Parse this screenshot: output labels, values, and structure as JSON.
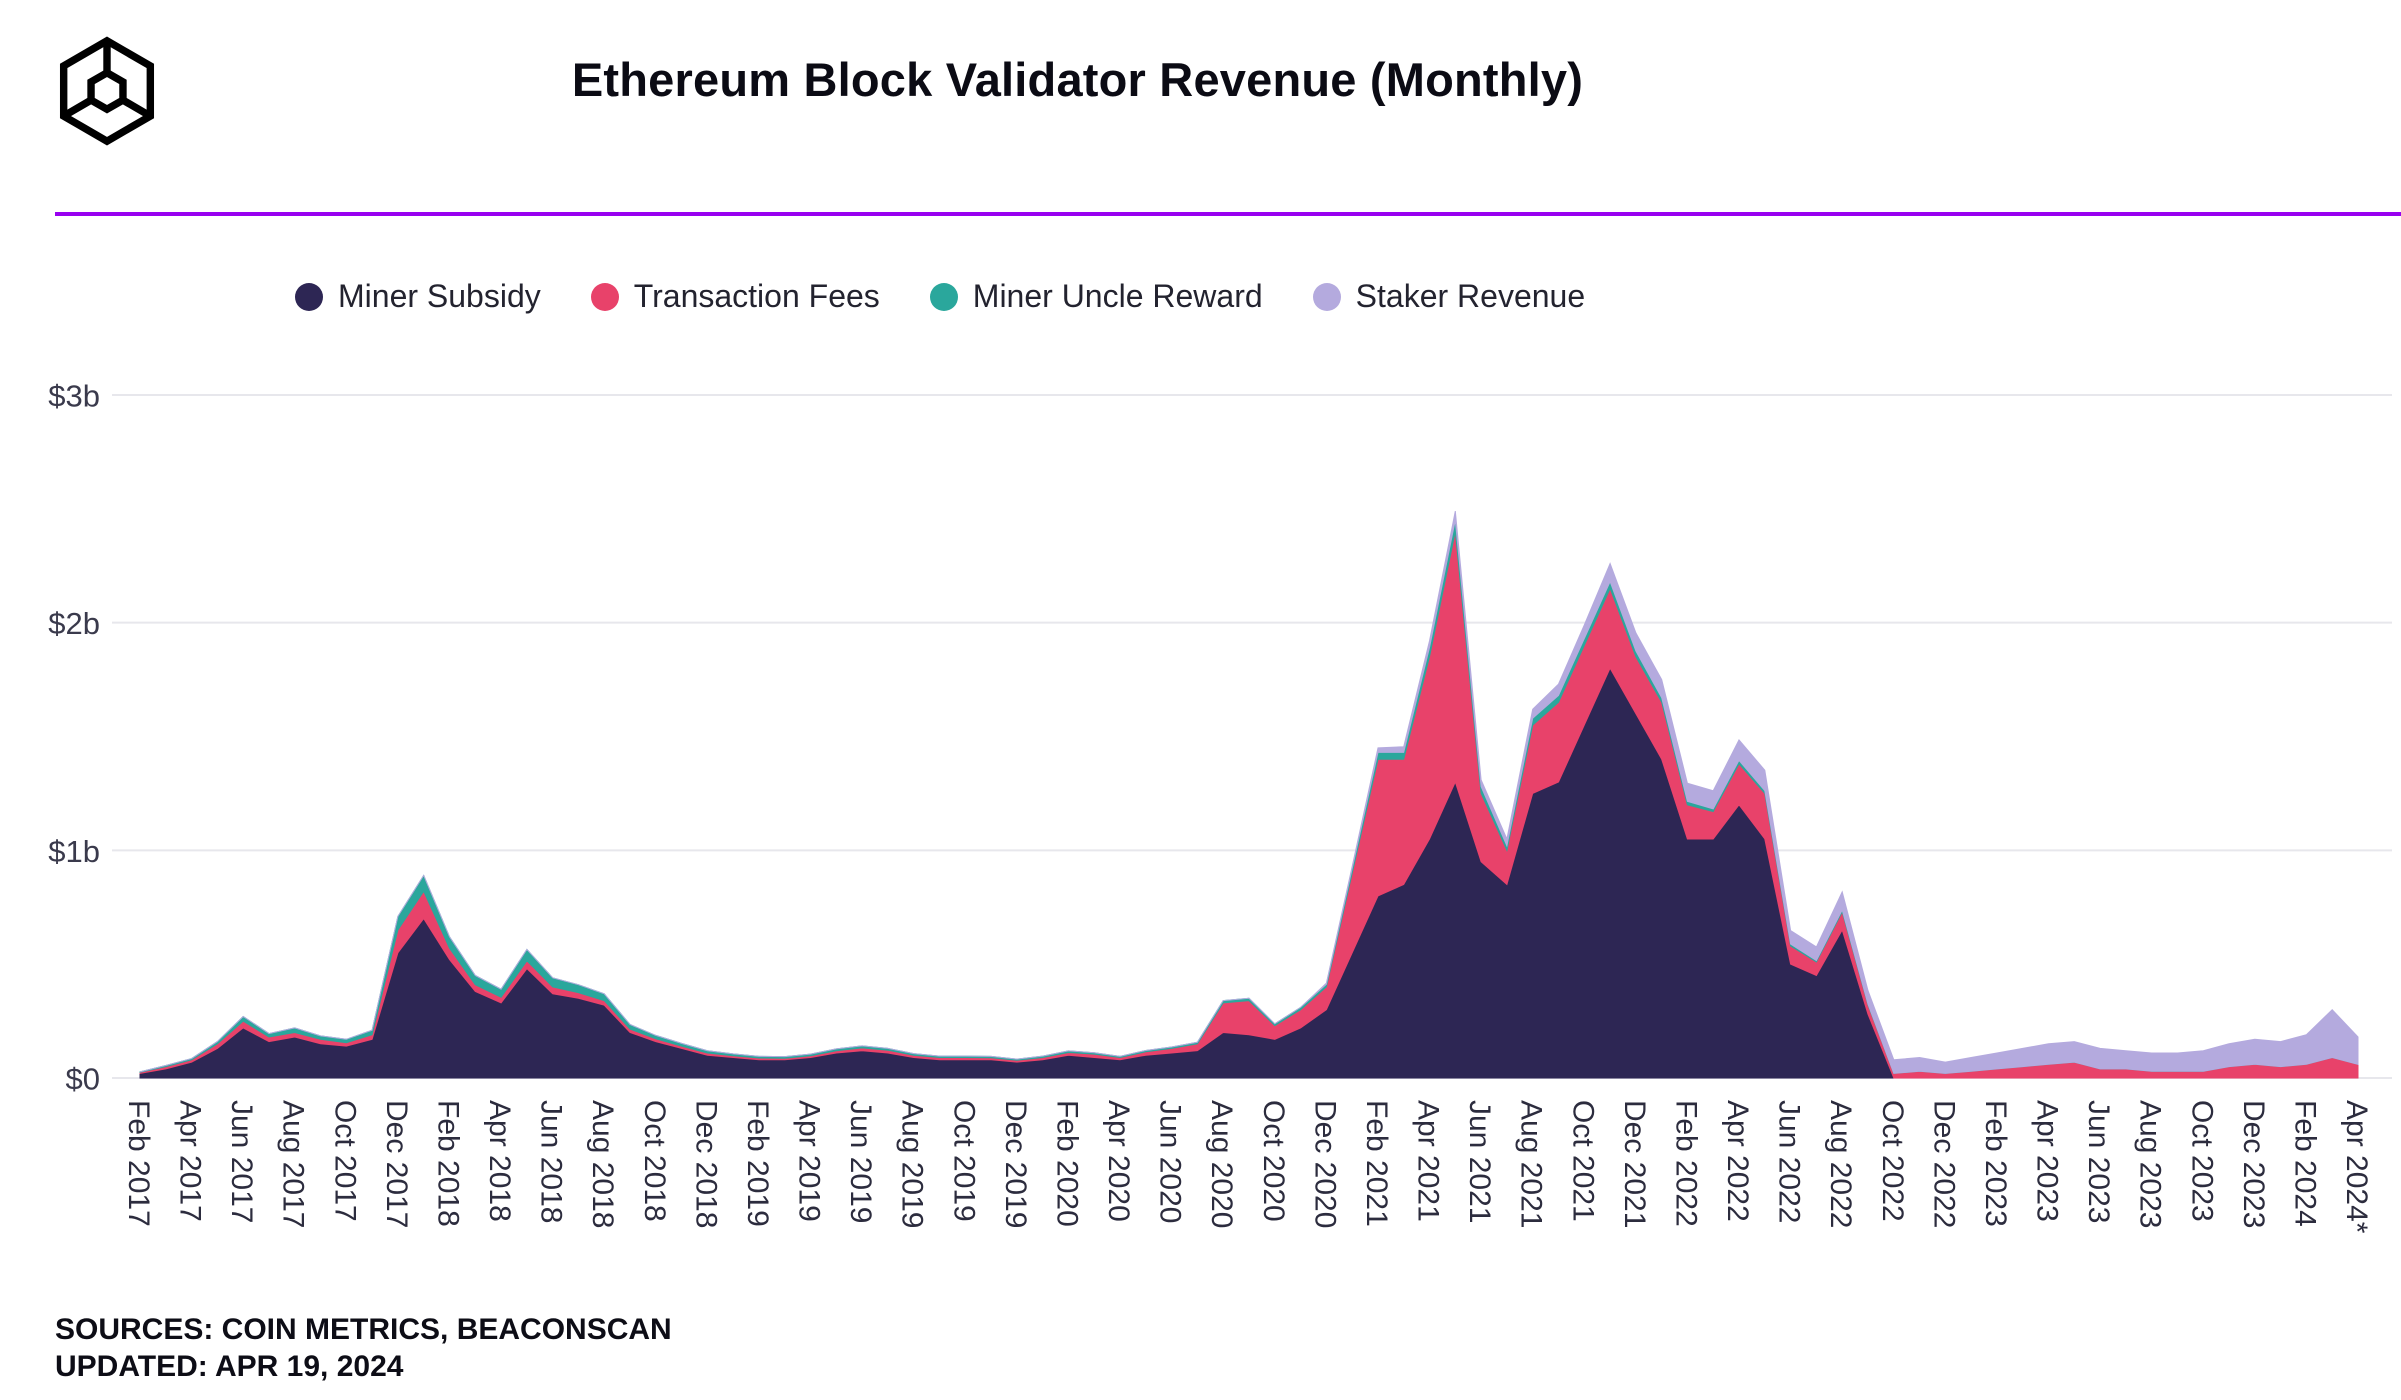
{
  "header": {
    "title": "Ethereum Block Validator Revenue (Monthly)",
    "rule_color": "#9800f0"
  },
  "legend": [
    {
      "label": "Miner Subsidy",
      "color": "#2d2654"
    },
    {
      "label": "Transaction Fees",
      "color": "#e8426a"
    },
    {
      "label": "Miner Uncle Reward",
      "color": "#2aa79c"
    },
    {
      "label": "Staker Revenue",
      "color": "#b4aade"
    }
  ],
  "footer": {
    "sources": "SOURCES: COIN METRICS, BEACONSCAN",
    "updated": "UPDATED: APR 19, 2024"
  },
  "chart_data": {
    "type": "area",
    "stacked": true,
    "title": "Ethereum Block Validator Revenue (Monthly)",
    "unit": "USD billions per month",
    "ylim": [
      0,
      3
    ],
    "y_ticks": [
      "$0",
      "$1b",
      "$2b",
      "$3b"
    ],
    "y_tick_values": [
      0,
      1,
      2,
      3
    ],
    "grid": "horizontal",
    "legend_position": "top",
    "start_month": "Feb 2017",
    "end_month": "Apr 2024*",
    "tick_every": 2,
    "x_tick_labels": [
      "Feb 2017",
      "Apr 2017",
      "Jun 2017",
      "Aug 2017",
      "Oct 2017",
      "Dec 2017",
      "Feb 2018",
      "Apr 2018",
      "Jun 2018",
      "Aug 2018",
      "Oct 2018",
      "Dec 2018",
      "Feb 2019",
      "Apr 2019",
      "Jun 2019",
      "Aug 2019",
      "Oct 2019",
      "Dec 2019",
      "Feb 2020",
      "Apr 2020",
      "Jun 2020",
      "Aug 2020",
      "Oct 2020",
      "Dec 2020",
      "Feb 2021",
      "Apr 2021",
      "Jun 2021",
      "Aug 2021",
      "Oct 2021",
      "Dec 2021",
      "Feb 2022",
      "Apr 2022",
      "Jun 2022",
      "Aug 2022",
      "Oct 2022",
      "Dec 2022",
      "Feb 2023",
      "Apr 2023",
      "Jun 2023",
      "Aug 2023",
      "Oct 2023",
      "Dec 2023",
      "Feb 2024",
      "Apr 2024*"
    ],
    "series": [
      {
        "name": "Miner Subsidy",
        "color": "#2d2654",
        "values": [
          0.02,
          0.04,
          0.07,
          0.13,
          0.22,
          0.16,
          0.18,
          0.15,
          0.14,
          0.17,
          0.55,
          0.7,
          0.52,
          0.38,
          0.33,
          0.48,
          0.37,
          0.35,
          0.32,
          0.2,
          0.16,
          0.13,
          0.1,
          0.09,
          0.08,
          0.08,
          0.09,
          0.11,
          0.12,
          0.11,
          0.09,
          0.08,
          0.08,
          0.08,
          0.07,
          0.08,
          0.1,
          0.09,
          0.08,
          0.1,
          0.11,
          0.12,
          0.2,
          0.19,
          0.17,
          0.22,
          0.3,
          0.55,
          0.8,
          0.85,
          1.05,
          1.3,
          0.95,
          0.85,
          1.25,
          1.3,
          1.55,
          1.8,
          1.6,
          1.4,
          1.05,
          1.05,
          1.2,
          1.05,
          0.5,
          0.45,
          0.65,
          0.28,
          0,
          0,
          0,
          0,
          0,
          0,
          0,
          0,
          0,
          0,
          0,
          0,
          0,
          0,
          0,
          0,
          0,
          0,
          0
        ]
      },
      {
        "name": "Transaction Fees",
        "color": "#e8426a",
        "values": [
          0.005,
          0.01,
          0.01,
          0.02,
          0.03,
          0.02,
          0.02,
          0.02,
          0.015,
          0.02,
          0.1,
          0.12,
          0.05,
          0.03,
          0.025,
          0.035,
          0.03,
          0.025,
          0.02,
          0.015,
          0.012,
          0.01,
          0.01,
          0.008,
          0.008,
          0.007,
          0.008,
          0.01,
          0.012,
          0.012,
          0.01,
          0.01,
          0.01,
          0.009,
          0.008,
          0.01,
          0.012,
          0.015,
          0.01,
          0.015,
          0.02,
          0.03,
          0.13,
          0.15,
          0.06,
          0.08,
          0.1,
          0.35,
          0.6,
          0.55,
          0.8,
          1.1,
          0.3,
          0.15,
          0.3,
          0.35,
          0.35,
          0.35,
          0.25,
          0.25,
          0.15,
          0.12,
          0.18,
          0.2,
          0.08,
          0.06,
          0.08,
          0.04,
          0.02,
          0.03,
          0.02,
          0.03,
          0.04,
          0.05,
          0.06,
          0.07,
          0.04,
          0.04,
          0.03,
          0.03,
          0.03,
          0.05,
          0.06,
          0.05,
          0.06,
          0.09,
          0.06
        ]
      },
      {
        "name": "Miner Uncle Reward",
        "color": "#2aa79c",
        "values": [
          0.002,
          0.005,
          0.005,
          0.01,
          0.02,
          0.015,
          0.02,
          0.015,
          0.015,
          0.02,
          0.06,
          0.07,
          0.05,
          0.04,
          0.035,
          0.05,
          0.04,
          0.035,
          0.03,
          0.02,
          0.015,
          0.012,
          0.01,
          0.008,
          0.007,
          0.007,
          0.007,
          0.008,
          0.009,
          0.008,
          0.007,
          0.006,
          0.006,
          0.006,
          0.005,
          0.006,
          0.007,
          0.006,
          0.005,
          0.006,
          0.006,
          0.007,
          0.01,
          0.01,
          0.008,
          0.01,
          0.012,
          0.02,
          0.03,
          0.03,
          0.04,
          0.05,
          0.03,
          0.02,
          0.03,
          0.03,
          0.03,
          0.03,
          0.025,
          0.02,
          0.015,
          0.012,
          0.015,
          0.012,
          0.008,
          0.006,
          0.008,
          0.004,
          0,
          0,
          0,
          0,
          0,
          0,
          0,
          0,
          0,
          0,
          0,
          0,
          0,
          0,
          0,
          0,
          0,
          0,
          0
        ]
      },
      {
        "name": "Staker Revenue",
        "color": "#b4aade",
        "values": [
          0,
          0,
          0,
          0,
          0,
          0,
          0,
          0,
          0,
          0,
          0,
          0,
          0,
          0,
          0,
          0,
          0,
          0,
          0,
          0,
          0,
          0,
          0,
          0,
          0,
          0,
          0,
          0,
          0,
          0,
          0,
          0,
          0,
          0,
          0,
          0,
          0,
          0,
          0,
          0,
          0,
          0,
          0,
          0,
          0,
          0,
          0.005,
          0.01,
          0.02,
          0.025,
          0.03,
          0.04,
          0.03,
          0.03,
          0.04,
          0.05,
          0.06,
          0.08,
          0.08,
          0.08,
          0.08,
          0.08,
          0.09,
          0.09,
          0.06,
          0.06,
          0.08,
          0.06,
          0.06,
          0.06,
          0.05,
          0.06,
          0.07,
          0.08,
          0.09,
          0.09,
          0.09,
          0.08,
          0.08,
          0.08,
          0.09,
          0.1,
          0.11,
          0.11,
          0.13,
          0.21,
          0.12
        ]
      }
    ]
  }
}
